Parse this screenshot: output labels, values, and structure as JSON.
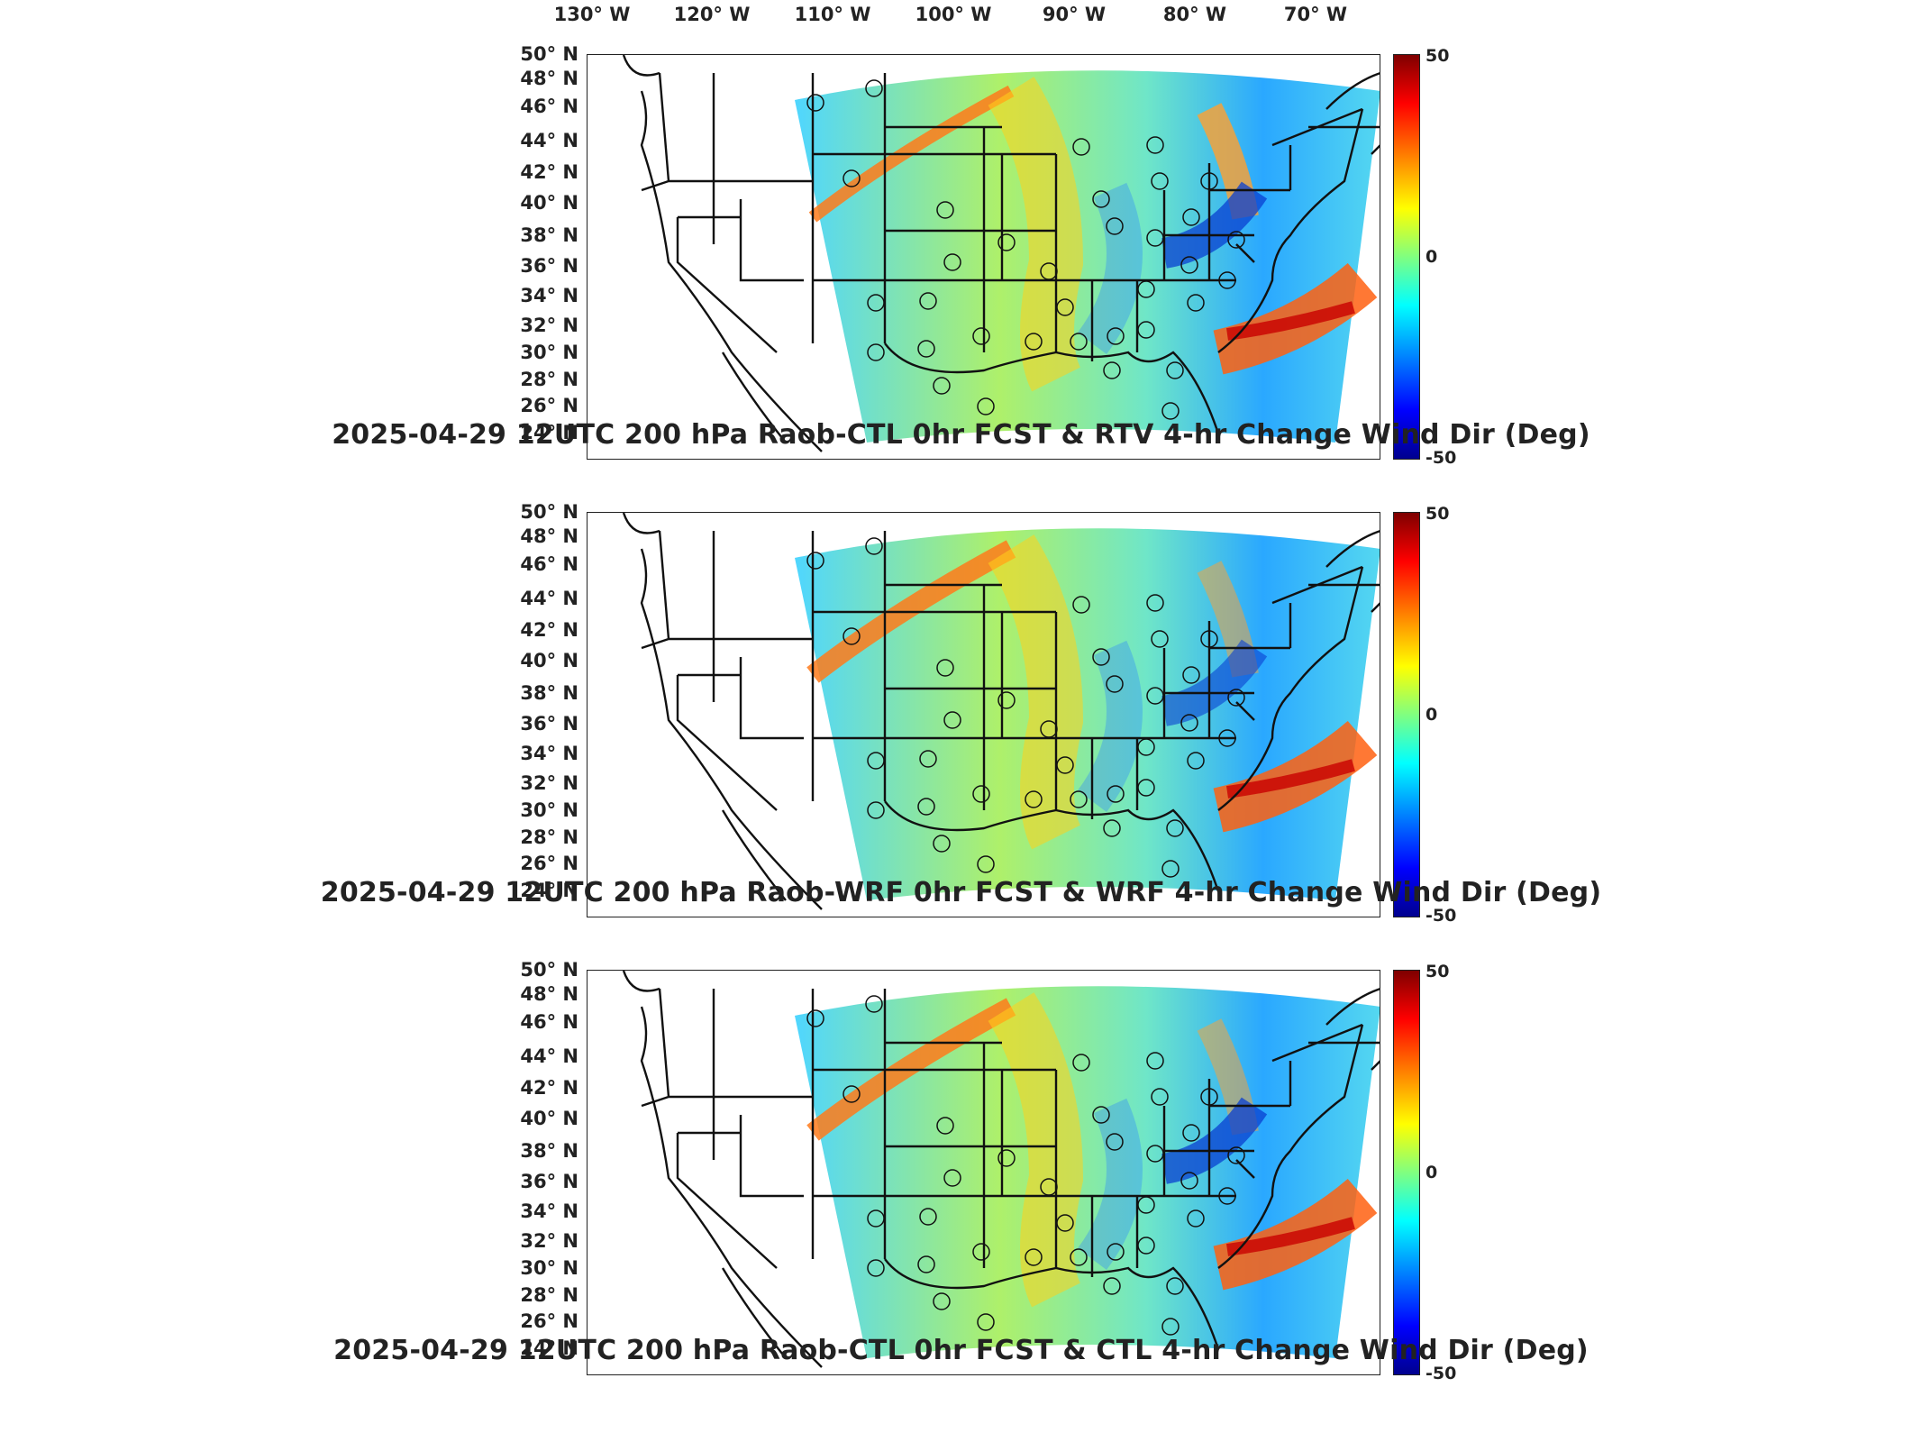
{
  "longitude_labels": [
    "130° W",
    "120° W",
    "110° W",
    "100° W",
    "90° W",
    "80° W",
    "70° W"
  ],
  "latitude_labels": [
    "50° N",
    "48° N",
    "46° N",
    "44° N",
    "42° N",
    "40° N",
    "38° N",
    "36° N",
    "34° N",
    "32° N",
    "30° N",
    "28° N",
    "26° N",
    "24° N"
  ],
  "colorbar": {
    "max": "50",
    "mid": "0",
    "min": "-50",
    "colors": [
      "#7f0000",
      "#ff0000",
      "#ff8000",
      "#ffff00",
      "#80ff80",
      "#00ffff",
      "#0080ff",
      "#0000ff",
      "#00008f"
    ]
  },
  "panels": [
    {
      "title": "2025-04-29 12UTC 200 hPa Raob-CTL 0hr FCST & RTV 4-hr Change Wind Dir (Deg)"
    },
    {
      "title": "2025-04-29 12UTC 200 hPa Raob-WRF 0hr FCST & WRF 4-hr Change Wind Dir (Deg)"
    },
    {
      "title": "2025-04-29 12UTC 200 hPa Raob-CTL 0hr FCST & CTL 4-hr Change Wind Dir (Deg)"
    }
  ]
}
